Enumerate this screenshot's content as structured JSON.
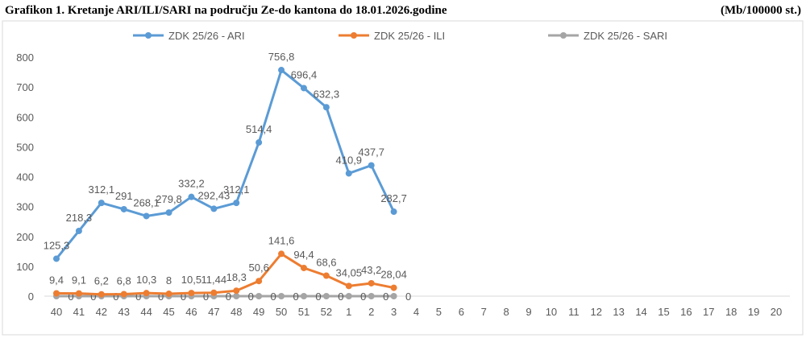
{
  "chart_data": {
    "type": "line",
    "title": "Grafikon 1. Kretanje ARI/ILI/SARI na području Ze-do kantona do 18.01.2026.godine",
    "unit_label": "(Mb/100000 st.)",
    "categories": [
      "40",
      "41",
      "42",
      "43",
      "44",
      "45",
      "46",
      "47",
      "48",
      "49",
      "50",
      "51",
      "52",
      "1",
      "2",
      "3",
      "4",
      "5",
      "6",
      "7",
      "8",
      "9",
      "10",
      "11",
      "12",
      "13",
      "14",
      "15",
      "16",
      "17",
      "18",
      "19",
      "20"
    ],
    "ylim": [
      0,
      800
    ],
    "yticks": [
      0,
      100,
      200,
      300,
      400,
      500,
      600,
      700,
      800
    ],
    "grid": false,
    "legend": "top",
    "series": [
      {
        "name": "ZDK 25/26 - ARI",
        "color": "#5b9bd5",
        "values": [
          125.3,
          218.3,
          312.1,
          291,
          268.1,
          279.8,
          332.2,
          292.43,
          312.1,
          514.4,
          756.8,
          696.4,
          632.3,
          410.9,
          437.7,
          282.7,
          null,
          null,
          null,
          null,
          null,
          null,
          null,
          null,
          null,
          null,
          null,
          null,
          null,
          null,
          null,
          null,
          null
        ],
        "value_labels": [
          "125,3",
          "218,3",
          "312,1",
          "291",
          "268,1",
          "279,8",
          "332,2",
          "292,43",
          "312,1",
          "514,4",
          "756,8",
          "696,4",
          "632,3",
          "410,9",
          "437,7",
          "282,7",
          null,
          null,
          null,
          null,
          null,
          null,
          null,
          null,
          null,
          null,
          null,
          null,
          null,
          null,
          null,
          null,
          null
        ]
      },
      {
        "name": "ZDK 25/26 - ILI",
        "color": "#ed7d31",
        "values": [
          9.4,
          9.1,
          6.2,
          6.8,
          10.3,
          8,
          10.5,
          11.44,
          18.3,
          50.6,
          141.6,
          94.4,
          68.6,
          34.05,
          43.2,
          28.04,
          null,
          null,
          null,
          null,
          null,
          null,
          null,
          null,
          null,
          null,
          null,
          null,
          null,
          null,
          null,
          null,
          null
        ],
        "value_labels": [
          "9,4",
          "9,1",
          "6,2",
          "6,8",
          "10,3",
          "8",
          "10,5",
          "11,44",
          "18,3",
          "50,6",
          "141,6",
          "94,4",
          "68,6",
          "34,05",
          "43,2",
          "28,04",
          null,
          null,
          null,
          null,
          null,
          null,
          null,
          null,
          null,
          null,
          null,
          null,
          null,
          null,
          null,
          null,
          null
        ]
      },
      {
        "name": "ZDK 25/26 - SARI",
        "color": "#a5a5a5",
        "values": [
          0,
          0,
          0,
          0,
          0,
          0,
          0,
          0,
          0,
          0,
          0,
          0,
          0,
          0,
          0,
          0,
          null,
          null,
          null,
          null,
          null,
          null,
          null,
          null,
          null,
          null,
          null,
          null,
          null,
          null,
          null,
          null,
          null
        ]
      }
    ]
  }
}
